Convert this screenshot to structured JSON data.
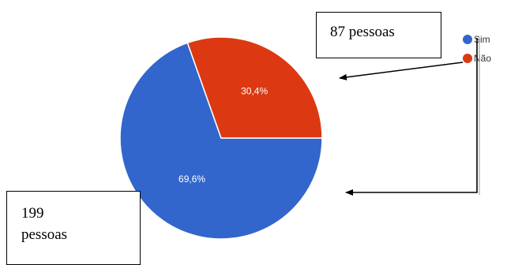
{
  "chart_data": {
    "type": "pie",
    "title": "",
    "categories": [
      "Sim",
      "Não"
    ],
    "values": [
      69.6,
      30.4
    ],
    "counts": [
      199,
      87
    ],
    "slice_labels": [
      "69,6%",
      "30,4%"
    ],
    "colors": [
      "#3366cc",
      "#dc3912"
    ],
    "legend": {
      "position": "right",
      "entries": [
        "Sim",
        "Não"
      ]
    }
  },
  "annotations": {
    "sim_line1": "199",
    "sim_line2": "pessoas",
    "nao": "87 pessoas"
  }
}
